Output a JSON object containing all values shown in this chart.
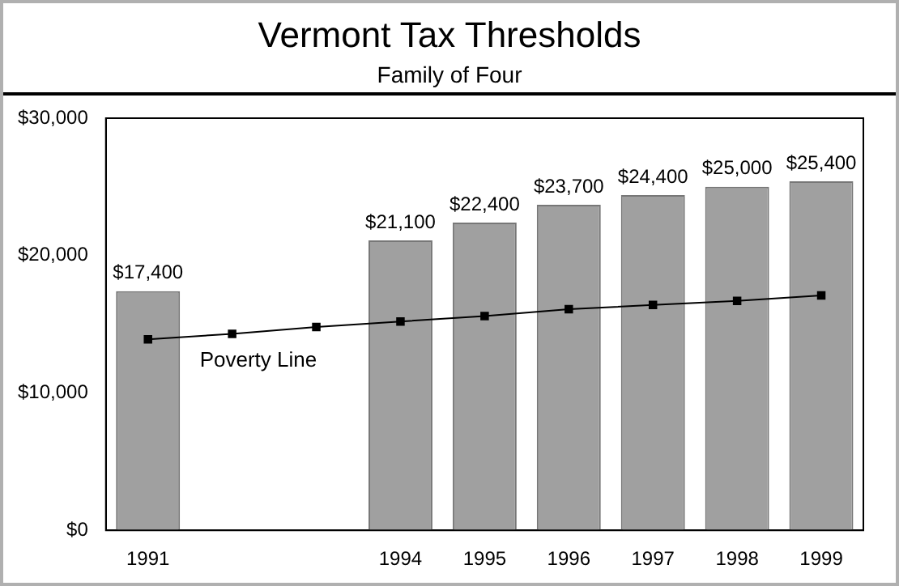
{
  "chart_data": {
    "type": "bar",
    "title": "Vermont Tax Thresholds",
    "subtitle": "Family of Four",
    "categories": [
      "1991",
      null,
      null,
      "1994",
      "1995",
      "1996",
      "1997",
      "1998",
      "1999"
    ],
    "series": [
      {
        "color": "#a0a0a0",
        "values": [
          17400,
          null,
          null,
          21100,
          22400,
          23700,
          24400,
          25000,
          25400
        ],
        "value_labels": [
          "$17,400",
          null,
          null,
          "$21,100",
          "$22,400",
          "$23,700",
          "$24,400",
          "$25,000",
          "$25,400"
        ]
      },
      {
        "type": "line",
        "name": "Poverty Line",
        "color": "#000000",
        "marker": "square",
        "values": [
          13900,
          14300,
          14800,
          15200,
          15600,
          16100,
          16400,
          16700,
          17100
        ]
      }
    ],
    "ylim": [
      0,
      30000
    ],
    "yticks": [
      {
        "value": 0,
        "label": "$0"
      },
      {
        "value": 10000,
        "label": "$10,000"
      },
      {
        "value": 20000,
        "label": "$20,000"
      },
      {
        "value": 30000,
        "label": "$30,000"
      }
    ],
    "grid": false,
    "legend": false
  }
}
